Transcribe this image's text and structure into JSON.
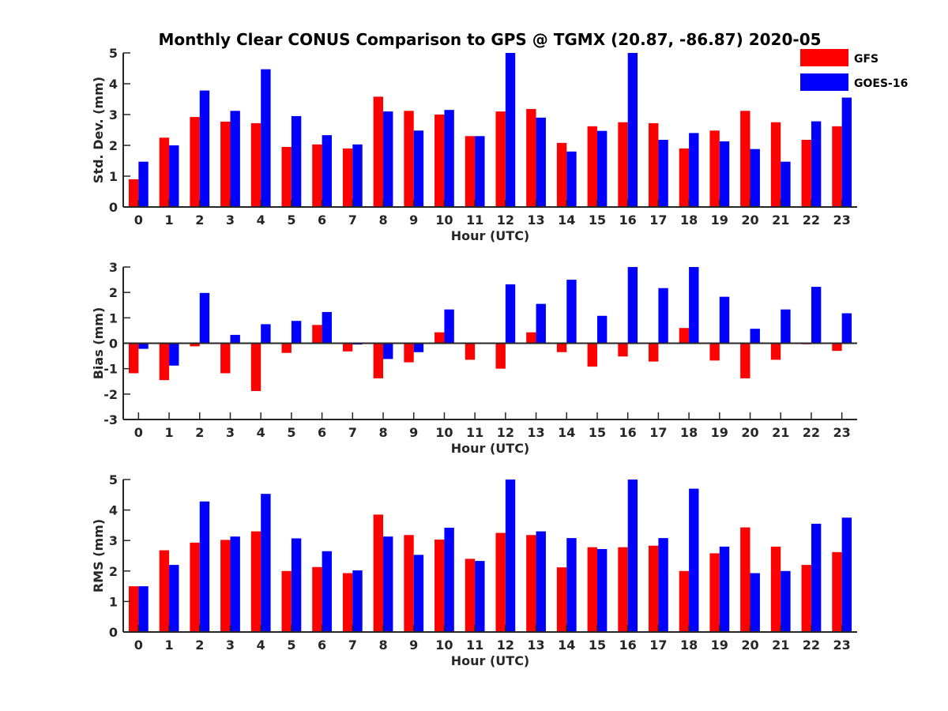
{
  "title": "Monthly Clear CONUS Comparison to GPS @ TGMX (20.87, -86.87) 2020-05",
  "colors": {
    "GFS": "#ff0000",
    "GOES-16": "#0000ff",
    "axis": "#262626"
  },
  "legend": {
    "placement": "top-right",
    "items": [
      "GFS",
      "GOES-16"
    ]
  },
  "chart_data": [
    {
      "type": "bar",
      "xlabel": "Hour (UTC)",
      "ylabel": "Std. Dev. (mm)",
      "ylim": [
        0,
        5
      ],
      "yticks": [
        0,
        1,
        2,
        3,
        4,
        5
      ],
      "categories": [
        "0",
        "1",
        "2",
        "3",
        "4",
        "5",
        "6",
        "7",
        "8",
        "9",
        "10",
        "11",
        "12",
        "13",
        "14",
        "15",
        "16",
        "17",
        "18",
        "19",
        "20",
        "21",
        "22",
        "23"
      ],
      "series": [
        {
          "name": "GFS",
          "values": [
            0.9,
            2.25,
            2.92,
            2.77,
            2.72,
            1.95,
            2.03,
            1.9,
            3.58,
            3.12,
            3.0,
            2.3,
            3.1,
            3.18,
            2.08,
            2.62,
            2.75,
            2.72,
            1.9,
            2.48,
            3.12,
            2.75,
            2.18,
            2.62
          ]
        },
        {
          "name": "GOES-16",
          "values": [
            1.47,
            2.0,
            3.78,
            3.12,
            4.47,
            2.95,
            2.33,
            2.03,
            3.1,
            2.48,
            3.15,
            2.3,
            5.0,
            2.9,
            1.8,
            2.47,
            5.0,
            2.18,
            2.4,
            2.13,
            1.88,
            1.47,
            2.78,
            3.55
          ]
        }
      ]
    },
    {
      "type": "bar",
      "xlabel": "Hour (UTC)",
      "ylabel": "Bias (mm)",
      "ylim": [
        -3,
        3
      ],
      "yticks": [
        -3,
        -2,
        -1,
        0,
        1,
        2,
        3
      ],
      "categories": [
        "0",
        "1",
        "2",
        "3",
        "4",
        "5",
        "6",
        "7",
        "8",
        "9",
        "10",
        "11",
        "12",
        "13",
        "14",
        "15",
        "16",
        "17",
        "18",
        "19",
        "20",
        "21",
        "22",
        "23"
      ],
      "series": [
        {
          "name": "GFS",
          "values": [
            -1.18,
            -1.45,
            -0.12,
            -1.18,
            -1.88,
            -0.38,
            0.72,
            -0.32,
            -1.38,
            -0.75,
            0.43,
            -0.65,
            -1.0,
            0.43,
            -0.35,
            -0.92,
            -0.52,
            -0.72,
            0.6,
            -0.68,
            -1.38,
            -0.65,
            -0.04,
            -0.3
          ]
        },
        {
          "name": "GOES-16",
          "values": [
            -0.22,
            -0.88,
            1.98,
            0.33,
            0.75,
            0.88,
            1.23,
            -0.05,
            -0.62,
            -0.35,
            1.33,
            0.0,
            2.32,
            1.55,
            2.5,
            1.08,
            3.0,
            2.17,
            3.0,
            1.83,
            0.57,
            1.33,
            2.22,
            1.18
          ]
        }
      ]
    },
    {
      "type": "bar",
      "xlabel": "Hour (UTC)",
      "ylabel": "RMS (mm)",
      "ylim": [
        0,
        5
      ],
      "yticks": [
        0,
        1,
        2,
        3,
        4,
        5
      ],
      "categories": [
        "0",
        "1",
        "2",
        "3",
        "4",
        "5",
        "6",
        "7",
        "8",
        "9",
        "10",
        "11",
        "12",
        "13",
        "14",
        "15",
        "16",
        "17",
        "18",
        "19",
        "20",
        "21",
        "22",
        "23"
      ],
      "series": [
        {
          "name": "GFS",
          "values": [
            1.5,
            2.68,
            2.93,
            3.02,
            3.3,
            2.0,
            2.13,
            1.93,
            3.85,
            3.18,
            3.03,
            2.4,
            3.25,
            3.18,
            2.12,
            2.78,
            2.78,
            2.83,
            2.0,
            2.58,
            3.43,
            2.8,
            2.2,
            2.62
          ]
        },
        {
          "name": "GOES-16",
          "values": [
            1.5,
            2.2,
            4.28,
            3.13,
            4.53,
            3.07,
            2.65,
            2.02,
            3.13,
            2.53,
            3.42,
            2.33,
            5.0,
            3.3,
            3.08,
            2.72,
            5.0,
            3.08,
            4.7,
            2.8,
            1.93,
            2.0,
            3.55,
            3.75
          ]
        }
      ]
    }
  ]
}
